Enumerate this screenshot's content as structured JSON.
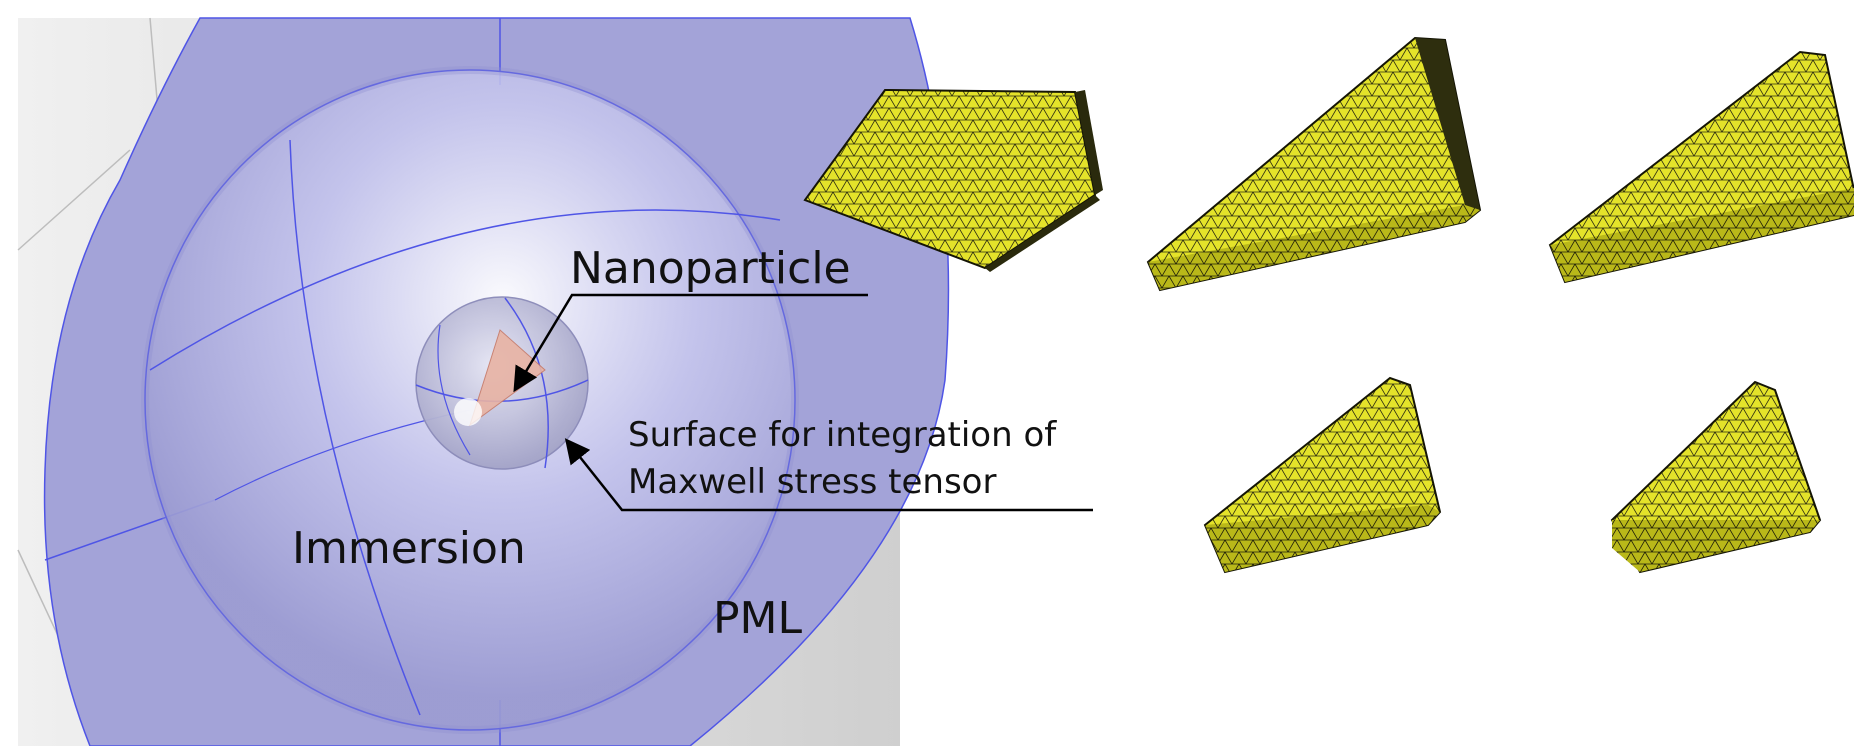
{
  "labels": {
    "nanoparticle": "Nanoparticle",
    "surface_line1": "Surface for integration of",
    "surface_line2": "Maxwell stress tensor",
    "immersion": "Immersion",
    "pml": "PML"
  },
  "colors": {
    "pml_blue": "#a3a3d8",
    "mesh_edge": "#4f55e6",
    "particle_yellow": "#e4e32a",
    "mesh_line": "#2b2b10",
    "background_gray": "#d8d8d8"
  }
}
